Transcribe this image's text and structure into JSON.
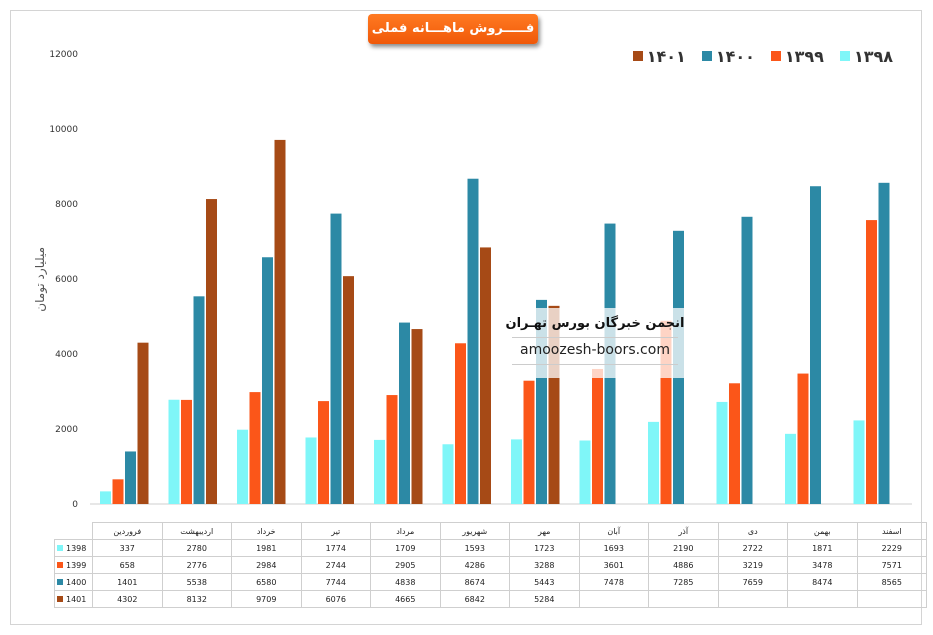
{
  "title": "فـــــروش ماهـــانه فملی",
  "ylabel": "میلیارد تومان",
  "watermark": {
    "title": "انجمن خبرگان بورس تهـران",
    "url": "amoozesh-boors.com"
  },
  "colors": {
    "title_bg": "#f05808"
  },
  "legend": [
    {
      "label": "۱۳۹۸",
      "color": "#7ff6f8"
    },
    {
      "label": "۱۳۹۹",
      "color": "#fb5619"
    },
    {
      "label": "۱۴۰۰",
      "color": "#2c89a5"
    },
    {
      "label": "۱۴۰۱",
      "color": "#a64a16"
    }
  ],
  "chart_data": {
    "type": "bar",
    "categories": [
      "فروردین",
      "اردیبهشت",
      "خرداد",
      "تیر",
      "مرداد",
      "شهریور",
      "مهر",
      "آبان",
      "آذر",
      "دی",
      "بهمن",
      "اسفند"
    ],
    "series": [
      {
        "name": "1398",
        "color": "#7ff6f8",
        "values": [
          337,
          2780,
          1981,
          1774,
          1709,
          1593,
          1723,
          1693,
          2190,
          2722,
          1871,
          2229
        ]
      },
      {
        "name": "1399",
        "color": "#fb5619",
        "values": [
          658,
          2776,
          2984,
          2744,
          2905,
          4286,
          3288,
          3601,
          4886,
          3219,
          3478,
          7571
        ]
      },
      {
        "name": "1400",
        "color": "#2c89a5",
        "values": [
          1401,
          5538,
          6580,
          7744,
          4838,
          8674,
          5443,
          7478,
          7285,
          7659,
          8474,
          8565
        ]
      },
      {
        "name": "1401",
        "color": "#a64a16",
        "values": [
          4302,
          8132,
          9709,
          6076,
          4665,
          6842,
          5284,
          null,
          null,
          null,
          null,
          null
        ]
      }
    ],
    "ylim": [
      0,
      12000
    ],
    "yticks": [
      0,
      2000,
      4000,
      6000,
      8000,
      10000,
      12000
    ],
    "ylabel": "میلیارد تومان",
    "grid": false,
    "legend_position": "top-right"
  }
}
